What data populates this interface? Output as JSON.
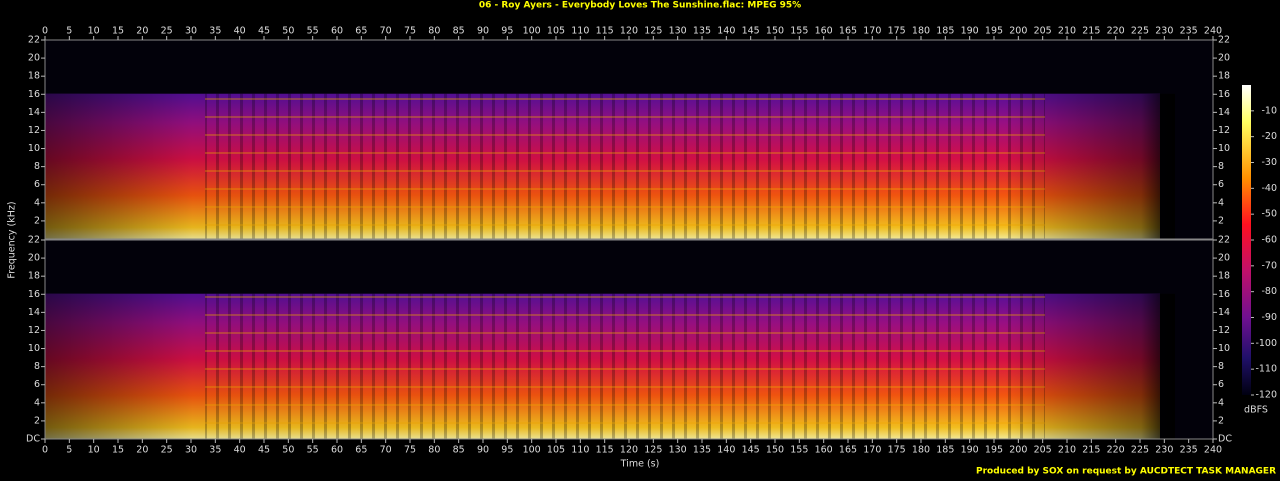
{
  "chart_data": {
    "type": "spectrogram",
    "title": "06 - Roy Ayers - Everybody Loves The Sunshine.flac: MPEG 95%",
    "xlabel": "Time (s)",
    "ylabel": "Frequency (kHz)",
    "xlim": [
      0,
      240
    ],
    "xticks": [
      0,
      5,
      10,
      15,
      20,
      25,
      30,
      35,
      40,
      45,
      50,
      55,
      60,
      65,
      70,
      75,
      80,
      85,
      90,
      95,
      100,
      105,
      110,
      115,
      120,
      125,
      130,
      135,
      140,
      145,
      150,
      155,
      160,
      165,
      170,
      175,
      180,
      185,
      190,
      195,
      200,
      205,
      210,
      215,
      220,
      225,
      230,
      235,
      240
    ],
    "ylim": [
      0,
      22
    ],
    "yticks": [
      {
        "value": 0,
        "label": "DC"
      },
      2,
      4,
      6,
      8,
      10,
      12,
      14,
      16,
      18,
      20,
      22
    ],
    "colorbar": {
      "label": "dBFS",
      "lim": [
        -120,
        0
      ],
      "ticks": [
        -10,
        -20,
        -30,
        -40,
        -50,
        -60,
        -70,
        -80,
        -90,
        -100,
        -110,
        -120
      ]
    },
    "credit": "Produced by SOX on request by AUCDTECT TASK MANAGER"
  }
}
